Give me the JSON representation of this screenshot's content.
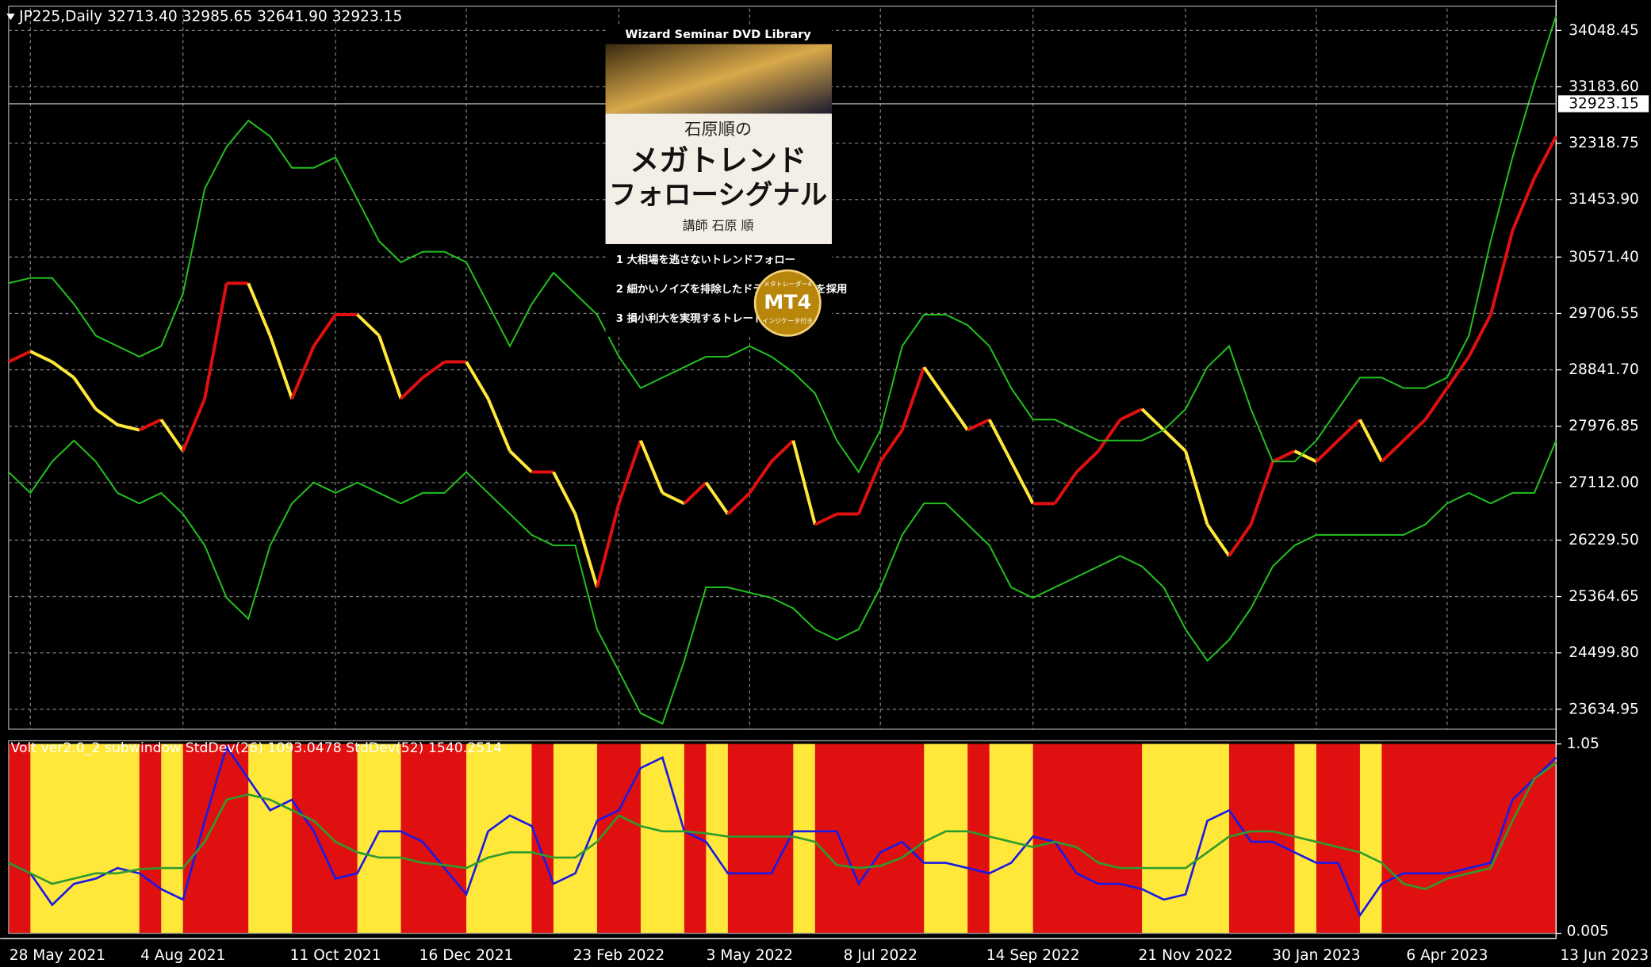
{
  "chart_data": [
    {
      "type": "line",
      "title": "JP225,Daily  32713.40 32985.65 32641.90 32923.15",
      "categories": [
        null,
        "28 May 2021",
        null,
        null,
        null,
        null,
        null,
        null,
        "4 Aug 2021",
        null,
        null,
        null,
        null,
        null,
        null,
        "11 Oct 2021",
        null,
        null,
        null,
        null,
        null,
        "16 Dec 2021",
        null,
        null,
        null,
        null,
        null,
        null,
        "23 Feb 2022",
        null,
        null,
        null,
        null,
        null,
        "3 May 2022",
        null,
        null,
        null,
        null,
        null,
        "8 Jul 2022",
        null,
        null,
        null,
        null,
        null,
        null,
        "14 Sep 2022",
        null,
        null,
        null,
        null,
        null,
        null,
        "21 Nov 2022",
        null,
        null,
        null,
        null,
        null,
        "30 Jan 2023",
        null,
        null,
        null,
        null,
        null,
        "6 Apr 2023",
        null,
        null,
        null,
        null,
        "13 Jun 2023"
      ],
      "series": [
        {
          "color": "#ffe83a",
          "values": [
            28964,
            29124,
            28964,
            28722,
            28240,
            27998,
            27918,
            28078,
            27596,
            28400,
            30170,
            30170,
            29366,
            28400,
            29205,
            29688,
            29688,
            29366,
            28400,
            28722,
            28964,
            28964,
            28400,
            27596,
            27274,
            27274,
            26630,
            25504,
            26790,
            27757,
            26952,
            26790,
            27113,
            26630,
            26952,
            27435,
            27757,
            26469,
            26630,
            26630,
            27435,
            27918,
            28883,
            28400,
            27918,
            28078,
            27435,
            26790,
            26790,
            27274,
            27596,
            28078,
            28240,
            27918,
            27596,
            26469,
            25987,
            26469,
            27435,
            27596,
            27435,
            27757,
            28078,
            27435,
            27757,
            28078,
            28561,
            29044,
            29688,
            30975,
            31780,
            32423
          ]
        },
        {
          "color": "#22c11f",
          "values": [
            30171,
            30251,
            30251,
            29849,
            29366,
            29205,
            29044,
            29205,
            30010,
            31619,
            32262,
            32665,
            32423,
            31941,
            31941,
            32101,
            31458,
            30814,
            30492,
            30653,
            30653,
            30492,
            29849,
            29205,
            29849,
            30332,
            30010,
            29688,
            29044,
            28562,
            28723,
            28883,
            29044,
            29044,
            29205,
            29044,
            28803,
            28481,
            27757,
            27274,
            27918,
            29205,
            29688,
            29688,
            29527,
            29205,
            28562,
            28079,
            28079,
            27918,
            27757,
            27757,
            27757,
            27918,
            28240,
            28883,
            29205,
            28240,
            27435,
            27435,
            27757,
            28240,
            28723,
            28723,
            28562,
            28562,
            28723,
            29366,
            30814,
            32101,
            33228,
            34274
          ]
        },
        {
          "color": "#22c11f",
          "values": [
            27274,
            26953,
            27435,
            27757,
            27435,
            26953,
            26792,
            26953,
            26631,
            26148,
            25344,
            25022,
            26148,
            26792,
            27114,
            26953,
            27114,
            26953,
            26792,
            26953,
            26953,
            27274,
            26953,
            26631,
            26309,
            26148,
            26148,
            24861,
            24217,
            23574,
            23413,
            24378,
            25505,
            25505,
            25424,
            25344,
            25183,
            24861,
            24700,
            24861,
            25505,
            26309,
            26792,
            26792,
            26470,
            26148,
            25505,
            25344,
            25505,
            25665,
            25826,
            25987,
            25826,
            25505,
            24861,
            24378,
            24700,
            25183,
            25826,
            26148,
            26309,
            26309,
            26309,
            26309,
            26309,
            26470,
            26792,
            26953,
            26792,
            26953,
            26953,
            27757
          ]
        }
      ],
      "up_color": "#e01010",
      "down_color": "#ffe83a",
      "ylim": [
        23329,
        34386
      ],
      "yticks": [
        {
          "value": 34048.45,
          "label": "34048.45"
        },
        {
          "value": 33183.6,
          "label": "33183.60"
        },
        {
          "value": 32318.75,
          "label": "32318.75"
        },
        {
          "value": 31453.9,
          "label": "31453.90"
        },
        {
          "value": 30571.4,
          "label": "30571.40"
        },
        {
          "value": 29706.55,
          "label": "29706.55"
        },
        {
          "value": 28841.7,
          "label": "28841.70"
        },
        {
          "value": 27976.85,
          "label": "27976.85"
        },
        {
          "value": 27112,
          "label": "27112.00"
        },
        {
          "value": 26229.5,
          "label": "26229.50"
        },
        {
          "value": 25364.65,
          "label": "25364.65"
        },
        {
          "value": 24499.8,
          "label": "24499.80"
        },
        {
          "value": 23634.95,
          "label": "23634.95"
        }
      ],
      "last_price": 32923.15,
      "grid": true
    },
    {
      "type": "line",
      "title": "Volt ver2.0_2 subwindow  StdDev(26) 1093.0478  StdDev(52) 1540.2514",
      "series": [
        {
          "color": "#1a1ae6",
          "values": [
            0.394,
            0.336,
            0.162,
            0.278,
            0.307,
            0.365,
            0.336,
            0.249,
            0.191,
            0.626,
            1.033,
            0.858,
            0.684,
            0.742,
            0.568,
            0.307,
            0.336,
            0.568,
            0.568,
            0.51,
            0.365,
            0.22,
            0.568,
            0.655,
            0.597,
            0.278,
            0.336,
            0.626,
            0.684,
            0.917,
            0.975,
            0.568,
            0.51,
            0.336,
            0.336,
            0.336,
            0.568,
            0.568,
            0.568,
            0.278,
            0.452,
            0.51,
            0.394,
            0.394,
            0.365,
            0.336,
            0.394,
            0.539,
            0.51,
            0.336,
            0.278,
            0.278,
            0.249,
            0.191,
            0.22,
            0.626,
            0.684,
            0.51,
            0.51,
            0.452,
            0.394,
            0.394,
            0.104,
            0.278,
            0.336,
            0.336,
            0.336,
            0.365,
            0.394,
            0.742,
            0.858,
            0.975
          ]
        },
        {
          "color": "#2e9b2e",
          "values": [
            0.394,
            0.336,
            0.278,
            0.307,
            0.336,
            0.336,
            0.359,
            0.365,
            0.365,
            0.51,
            0.742,
            0.771,
            0.742,
            0.684,
            0.626,
            0.51,
            0.452,
            0.423,
            0.423,
            0.394,
            0.382,
            0.365,
            0.423,
            0.452,
            0.452,
            0.423,
            0.423,
            0.51,
            0.655,
            0.597,
            0.568,
            0.568,
            0.557,
            0.539,
            0.539,
            0.539,
            0.539,
            0.51,
            0.382,
            0.365,
            0.377,
            0.423,
            0.51,
            0.568,
            0.568,
            0.539,
            0.51,
            0.481,
            0.51,
            0.481,
            0.394,
            0.365,
            0.365,
            0.365,
            0.365,
            0.452,
            0.539,
            0.568,
            0.568,
            0.539,
            0.51,
            0.481,
            0.452,
            0.394,
            0.278,
            0.249,
            0.307,
            0.336,
            0.365,
            0.626,
            0.858,
            0.946
          ]
        }
      ],
      "ylim": [
        0.005,
        1.05
      ],
      "yticks": [
        1.05,
        0.005
      ]
    }
  ],
  "ad": {
    "library": "Wizard Seminar DVD Library",
    "author_of": "石原順の",
    "title1": "メガトレンド",
    "title2": "フォローシグナル",
    "lecturer": "講師 石原 順",
    "points": [
      "1 大相場を逃さないトレンドフォロー",
      "2 細かいノイズを排除したドテンシステムを採用",
      "3 損小利大を実現するトレードロジック"
    ],
    "badge_top": "メタトレーダー4",
    "badge": "MT4",
    "badge_bottom": "インジケータ付き"
  }
}
